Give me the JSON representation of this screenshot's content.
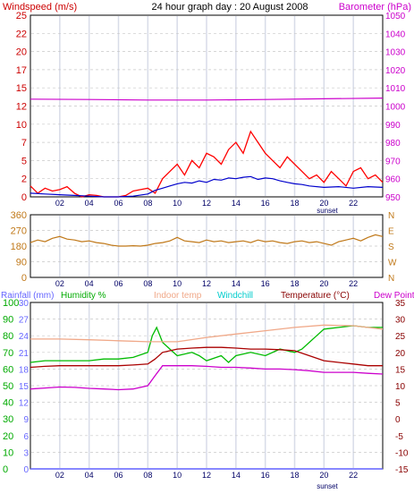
{
  "header": {
    "title": "24 hour graph day : 20 August 2008",
    "left_label": "Windspeed (m/s)",
    "right_label": "Barometer (hPa)"
  },
  "legend": {
    "rainfall": "Rainfall (mm)",
    "humidity": "Humidity %",
    "indoor": "Indoor temp",
    "windchill": "Windchill",
    "temperature": "Temperature (°C)",
    "dewpoint": "Dew Point"
  },
  "sunset_label": "sunset",
  "colors": {
    "wind": "#ff0000",
    "wind_avg": "#0000cc",
    "barometer": "#cc00cc",
    "direction": "#c07818",
    "humidity": "#00bb00",
    "temperature": "#aa0000",
    "dewpoint": "#cc00cc",
    "indoor": "#f0a888",
    "rain": "#6060ff",
    "axis_left": "#cc0000",
    "axis_right": "#cc00cc",
    "hum_axis": "#00aa00",
    "rain_axis": "#6666ff",
    "temp_axis": "#880000"
  },
  "chart_data": [
    {
      "type": "line",
      "x_ticks": [
        "02",
        "04",
        "06",
        "08",
        "10",
        "12",
        "14",
        "16",
        "18",
        "20",
        "22"
      ],
      "y_left_ticks": [
        "0",
        "2",
        "5",
        "7",
        "10",
        "12",
        "15",
        "17",
        "20",
        "22",
        "25"
      ],
      "y_right_ticks": [
        "950",
        "960",
        "970",
        "980",
        "990",
        "1000",
        "1010",
        "1020",
        "1030",
        "1040",
        "1050"
      ],
      "ylim_left": [
        0,
        25
      ],
      "ylim_right": [
        950,
        1050
      ],
      "series": [
        {
          "name": "Windspeed (m/s)",
          "key": "wind_gust",
          "color": "#ff0000",
          "x": [
            0,
            0.5,
            1,
            1.5,
            2,
            2.5,
            3,
            3.5,
            4,
            4.5,
            5,
            5.5,
            6,
            6.5,
            7,
            7.5,
            8,
            8.5,
            9,
            9.5,
            10,
            10.5,
            11,
            11.5,
            12,
            12.5,
            13,
            13.5,
            14,
            14.5,
            15,
            15.5,
            16,
            16.5,
            17,
            17.5,
            18,
            18.5,
            19,
            19.5,
            20,
            20.5,
            21,
            21.5,
            22,
            22.5,
            23,
            23.5,
            24
          ],
          "values": [
            1.5,
            0.5,
            1.2,
            0.8,
            1.0,
            1.4,
            0.5,
            0.0,
            0.3,
            0.2,
            0.0,
            0.0,
            0.0,
            0.2,
            0.8,
            1.0,
            1.2,
            0.5,
            2.5,
            3.5,
            4.5,
            3.0,
            5.0,
            4.0,
            6.0,
            5.5,
            4.5,
            6.5,
            7.5,
            6.0,
            9.0,
            7.5,
            6.0,
            5.0,
            4.0,
            5.5,
            4.5,
            3.5,
            2.5,
            3.0,
            2.0,
            3.5,
            2.5,
            1.5,
            3.5,
            4.0,
            2.5,
            3.0,
            2.0
          ]
        },
        {
          "name": "",
          "key": "wind_avg",
          "color": "#0000cc",
          "x": [
            0,
            1,
            2,
            3,
            4,
            5,
            6,
            7,
            8,
            8.5,
            9,
            9.5,
            10,
            10.5,
            11,
            11.5,
            12,
            12.5,
            13,
            13.5,
            14,
            14.5,
            15,
            15.5,
            16,
            16.5,
            17,
            17.5,
            18,
            18.5,
            19,
            20,
            21,
            22,
            23,
            24
          ],
          "values": [
            0.5,
            0.4,
            0.3,
            0.2,
            0.1,
            0.0,
            0.0,
            0.1,
            0.4,
            0.9,
            1.2,
            1.5,
            1.8,
            2.0,
            1.9,
            2.2,
            2.0,
            2.4,
            2.3,
            2.6,
            2.5,
            2.7,
            2.8,
            2.4,
            2.6,
            2.5,
            2.2,
            2.0,
            1.8,
            1.7,
            1.5,
            1.3,
            1.4,
            1.2,
            1.4,
            1.3
          ]
        },
        {
          "name": "Barometer (hPa)",
          "key": "barometer",
          "color": "#cc00cc",
          "x": [
            0,
            4,
            8,
            12,
            16,
            20,
            24
          ],
          "values": [
            1003.8,
            1003.6,
            1003.3,
            1003.3,
            1003.6,
            1004.0,
            1004.4
          ]
        }
      ]
    },
    {
      "type": "line",
      "x_ticks": [
        "02",
        "04",
        "06",
        "08",
        "10",
        "12",
        "14",
        "16",
        "18",
        "20",
        "22"
      ],
      "y_left_ticks": [
        "0",
        "90",
        "180",
        "270",
        "360"
      ],
      "y_right_ticks": [
        "N",
        "W",
        "S",
        "E",
        "N"
      ],
      "ylim": [
        0,
        360
      ],
      "series": [
        {
          "name": "",
          "key": "direction",
          "color": "#c07818",
          "x": [
            0,
            0.5,
            1,
            1.5,
            2,
            2.5,
            3,
            3.5,
            4,
            4.5,
            5,
            5.5,
            6,
            6.5,
            7,
            7.5,
            8,
            8.5,
            9,
            9.5,
            10,
            10.5,
            11,
            11.5,
            12,
            12.5,
            13,
            13.5,
            14,
            14.5,
            15,
            15.5,
            16,
            16.5,
            17,
            17.5,
            18,
            18.5,
            19,
            19.5,
            20,
            20.5,
            21,
            21.5,
            22,
            22.5,
            23,
            23.5,
            24
          ],
          "values": [
            200,
            215,
            205,
            225,
            235,
            220,
            215,
            205,
            210,
            200,
            195,
            185,
            180,
            180,
            182,
            180,
            185,
            195,
            200,
            210,
            230,
            210,
            205,
            200,
            215,
            205,
            210,
            200,
            205,
            210,
            200,
            215,
            205,
            210,
            200,
            195,
            205,
            210,
            200,
            205,
            195,
            185,
            205,
            215,
            225,
            210,
            230,
            245,
            235
          ]
        }
      ]
    },
    {
      "type": "line",
      "x_ticks": [
        "02",
        "04",
        "06",
        "08",
        "10",
        "12",
        "14",
        "16",
        "18",
        "20",
        "22"
      ],
      "humidity_ticks": [
        "0",
        "10",
        "20",
        "30",
        "40",
        "50",
        "60",
        "70",
        "80",
        "90",
        "100"
      ],
      "rain_ticks": [
        "0",
        "3",
        "6",
        "9",
        "12",
        "15",
        "18",
        "21",
        "24",
        "27",
        "30"
      ],
      "temp_ticks": [
        "-15",
        "-10",
        "-5",
        "0",
        "5",
        "10",
        "15",
        "20",
        "25",
        "30",
        "35"
      ],
      "ylim_humidity": [
        0,
        100
      ],
      "ylim_rain": [
        0,
        30
      ],
      "ylim_temp": [
        -15,
        35
      ],
      "series": [
        {
          "name": "Humidity %",
          "key": "humidity",
          "color": "#00bb00",
          "x": [
            0,
            1,
            2,
            3,
            4,
            5,
            6,
            7,
            8,
            8.3,
            8.6,
            9,
            9.5,
            10,
            11,
            11.5,
            12,
            13,
            13.5,
            14,
            15,
            16,
            17,
            18,
            18.5,
            19,
            19.5,
            20,
            21,
            22,
            23,
            24
          ],
          "values": [
            64,
            65,
            65,
            65,
            65,
            66,
            66,
            67,
            70,
            80,
            85,
            76,
            72,
            68,
            70,
            68,
            65,
            68,
            64,
            68,
            70,
            68,
            72,
            70,
            72,
            76,
            80,
            84,
            85,
            86,
            85,
            85
          ]
        },
        {
          "name": "Temperature (°C)",
          "key": "temperature",
          "color": "#aa0000",
          "x": [
            0,
            1,
            2,
            3,
            4,
            5,
            6,
            7,
            8,
            8.5,
            9,
            10,
            11,
            12,
            13,
            14,
            15,
            16,
            17,
            18,
            19,
            20,
            21,
            22,
            23,
            24
          ],
          "values": [
            15.5,
            15.8,
            16,
            16,
            16,
            16,
            16,
            16.2,
            16.5,
            18,
            20,
            21,
            21.3,
            21.5,
            21.5,
            21.3,
            21,
            21,
            20.8,
            20.5,
            19,
            17.5,
            17,
            16.5,
            16,
            16
          ]
        },
        {
          "name": "Dew Point",
          "key": "dewpoint",
          "color": "#cc00cc",
          "x": [
            0,
            1,
            2,
            3,
            4,
            5,
            6,
            7,
            8,
            8.5,
            9,
            10,
            11,
            12,
            13,
            14,
            15,
            16,
            17,
            18,
            19,
            20,
            21,
            22,
            23,
            24
          ],
          "values": [
            9,
            9.3,
            9.6,
            9.5,
            9.2,
            9,
            8.8,
            9,
            10,
            13,
            16,
            16,
            16,
            15.8,
            15.5,
            15.5,
            15.3,
            15,
            15,
            14.8,
            14.5,
            14,
            14,
            14,
            13.7,
            13.5
          ]
        },
        {
          "name": "Indoor temp",
          "key": "indoor",
          "color": "#f0a888",
          "x": [
            0,
            2,
            4,
            6,
            8,
            10,
            12,
            14,
            16,
            18,
            20,
            22,
            24
          ],
          "values": [
            24,
            24,
            23.8,
            23.5,
            23.2,
            23.2,
            24.5,
            25.5,
            26.5,
            27.5,
            28.2,
            28,
            27
          ]
        },
        {
          "name": "Rainfall (mm)",
          "key": "rain",
          "color": "#6060ff",
          "x": [
            0,
            24
          ],
          "values": [
            0,
            0
          ]
        }
      ]
    }
  ]
}
